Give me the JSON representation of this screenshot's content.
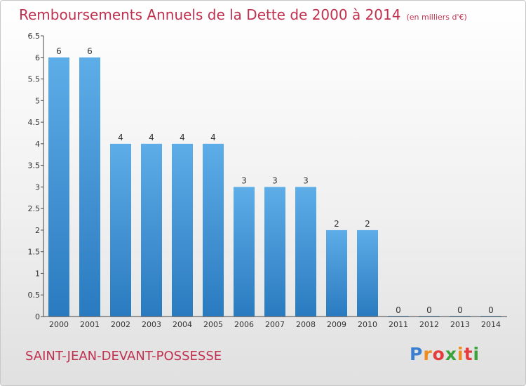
{
  "chart_data": {
    "type": "bar",
    "title": "Remboursements Annuels de la Dette de 2000 à 2014",
    "unit_note": "(en milliers d'€)",
    "categories": [
      "2000",
      "2001",
      "2002",
      "2003",
      "2004",
      "2005",
      "2006",
      "2007",
      "2008",
      "2009",
      "2010",
      "2011",
      "2012",
      "2013",
      "2014"
    ],
    "values": [
      6,
      6,
      4,
      4,
      4,
      4,
      3,
      3,
      3,
      2,
      2,
      0,
      0,
      0,
      0
    ],
    "value_labels": [
      "6",
      "6",
      "4",
      "4",
      "4",
      "4",
      "3",
      "3",
      "3",
      "2",
      "2",
      "0",
      "0",
      "0",
      "0"
    ],
    "ylim": [
      0,
      6.5
    ],
    "y_ticks": [
      "0",
      "0.5",
      "1",
      "1.5",
      "2",
      "2.5",
      "3",
      "3.5",
      "4",
      "4.5",
      "5",
      "5.5",
      "6",
      "6.5"
    ],
    "xlabel": "",
    "ylabel": "",
    "grid": false,
    "bar_color_top": "#5dade8",
    "bar_color_bottom": "#2a7ac0"
  },
  "footer": {
    "commune": "SAINT-JEAN-DEVANT-POSSESSE",
    "logo_letters": [
      "P",
      "r",
      "o",
      "x",
      "i",
      "t",
      "i"
    ],
    "logo_colors": [
      "#3a7fd0",
      "#f08c1e",
      "#e43c3c",
      "#3aa23a",
      "#f08c1e",
      "#e43c3c",
      "#3aa23a"
    ]
  },
  "colors": {
    "title": "#c0304f",
    "axis": "#444444"
  }
}
